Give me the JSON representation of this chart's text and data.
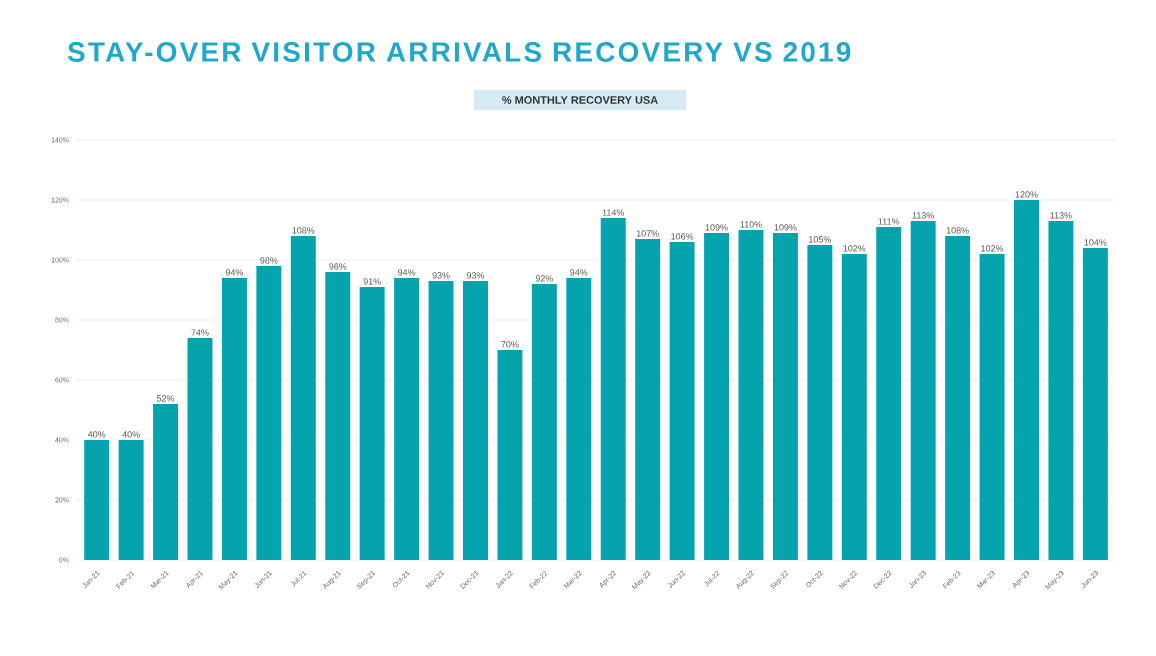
{
  "chart_data": {
    "type": "bar",
    "title": "STAY-OVER VISITOR ARRIVALS RECOVERY VS 2019",
    "subtitle": "% MONTHLY RECOVERY USA",
    "categories": [
      "Jan-21",
      "Feb-21",
      "Mar-21",
      "Apr-21",
      "May-21",
      "Jun-21",
      "Jul-21",
      "Aug-21",
      "Sep-21",
      "Oct-21",
      "Nov-21",
      "Dec-21",
      "Jan-22",
      "Feb-22",
      "Mar-22",
      "Apr-22",
      "May-22",
      "Jun-22",
      "Jul-22",
      "Aug-22",
      "Sep-22",
      "Oct-22",
      "Nov-22",
      "Dec-22",
      "Jan-23",
      "Feb-23",
      "Mar-23",
      "Apr-23",
      "May-23",
      "Jun-23"
    ],
    "values": [
      40,
      40,
      52,
      74,
      94,
      98,
      108,
      96,
      91,
      94,
      93,
      93,
      70,
      92,
      94,
      114,
      107,
      106,
      109,
      110,
      109,
      105,
      102,
      111,
      113,
      108,
      102,
      120,
      113,
      104
    ],
    "value_labels": [
      "40%",
      "40%",
      "52%",
      "74%",
      "94%",
      "98%",
      "108%",
      "96%",
      "91%",
      "94%",
      "93%",
      "93%",
      "70%",
      "92%",
      "94%",
      "114%",
      "107%",
      "106%",
      "109%",
      "110%",
      "109%",
      "105%",
      "102%",
      "111%",
      "113%",
      "108%",
      "102%",
      "120%",
      "113%",
      "104%"
    ],
    "color": "#04a3ad",
    "ylim": [
      0,
      140
    ],
    "yticks": [
      {
        "value": 0,
        "label": "0%"
      },
      {
        "value": 20,
        "label": "20%"
      },
      {
        "value": 40,
        "label": "40%"
      },
      {
        "value": 60,
        "label": "60%"
      },
      {
        "value": 80,
        "label": "80%"
      },
      {
        "value": 100,
        "label": "100%"
      },
      {
        "value": 120,
        "label": "120%"
      },
      {
        "value": 140,
        "label": "140%"
      }
    ],
    "grid": "y"
  }
}
